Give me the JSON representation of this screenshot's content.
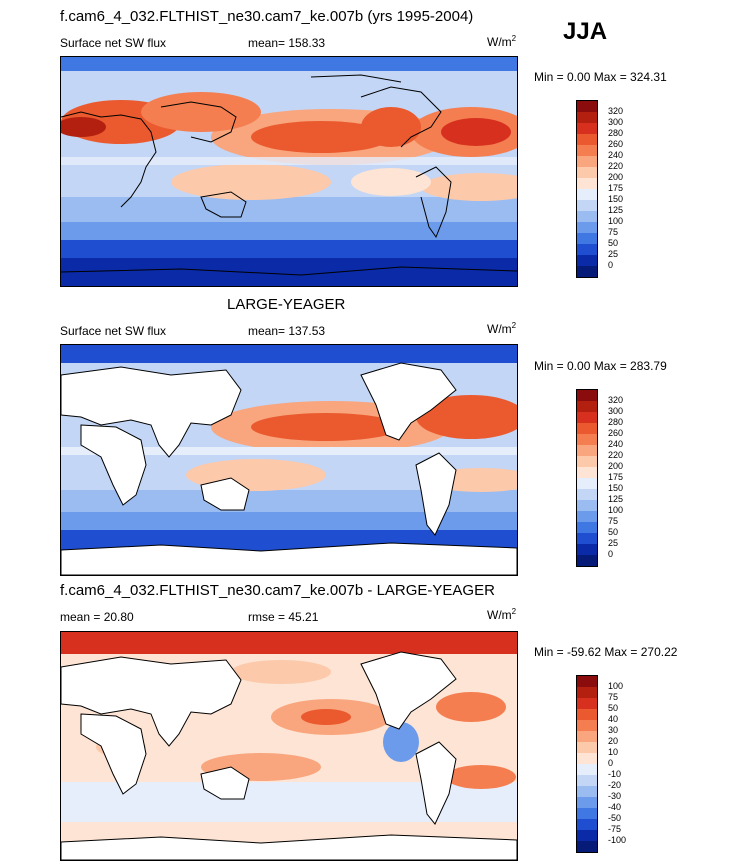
{
  "season": "JJA",
  "units": "W/m",
  "units_sup": "2",
  "panels": [
    {
      "title": "f.cam6_4_032.FLTHIST_ne30.cam7_ke.007b (yrs 1995-2004)",
      "left_label": "Surface net SW flux",
      "center_label": "mean= 158.33",
      "minmax": "Min =   0.00 Max = 324.31"
    },
    {
      "title": "LARGE-YEAGER",
      "left_label": "Surface net SW flux",
      "center_label": "mean= 137.53",
      "minmax": "Min =   0.00 Max = 283.79"
    },
    {
      "title": "f.cam6_4_032.FLTHIST_ne30.cam7_ke.007b - LARGE-YEAGER",
      "left_label": "mean =  20.80",
      "center_label": "rmse =  45.21",
      "minmax": "Min = -59.62 Max = 270.22"
    }
  ],
  "colorbar_abs": {
    "labels": [
      "320",
      "300",
      "280",
      "260",
      "240",
      "220",
      "200",
      "175",
      "150",
      "125",
      "100",
      "75",
      "50",
      "25",
      "0"
    ],
    "colors": [
      "#8b0c0c",
      "#b3200f",
      "#d7301f",
      "#ea5a2e",
      "#f47e4f",
      "#f9a57d",
      "#fcc9ab",
      "#fde4d4",
      "#e6eefb",
      "#c3d6f5",
      "#9bbcf0",
      "#6b9bea",
      "#3f77e3",
      "#1f4fd0",
      "#0a2aa8",
      "#061a78"
    ]
  },
  "colorbar_diff": {
    "labels": [
      "100",
      "75",
      "50",
      "40",
      "30",
      "20",
      "10",
      "0",
      "-10",
      "-20",
      "-30",
      "-40",
      "-50",
      "-75",
      "-100"
    ],
    "colors": [
      "#8b0c0c",
      "#b3200f",
      "#d7301f",
      "#ea5a2e",
      "#f47e4f",
      "#f9a57d",
      "#fcc9ab",
      "#fde4d4",
      "#e6eefb",
      "#c3d6f5",
      "#9bbcf0",
      "#6b9bea",
      "#3f77e3",
      "#1f4fd0",
      "#0a2aa8",
      "#061a78"
    ]
  }
}
